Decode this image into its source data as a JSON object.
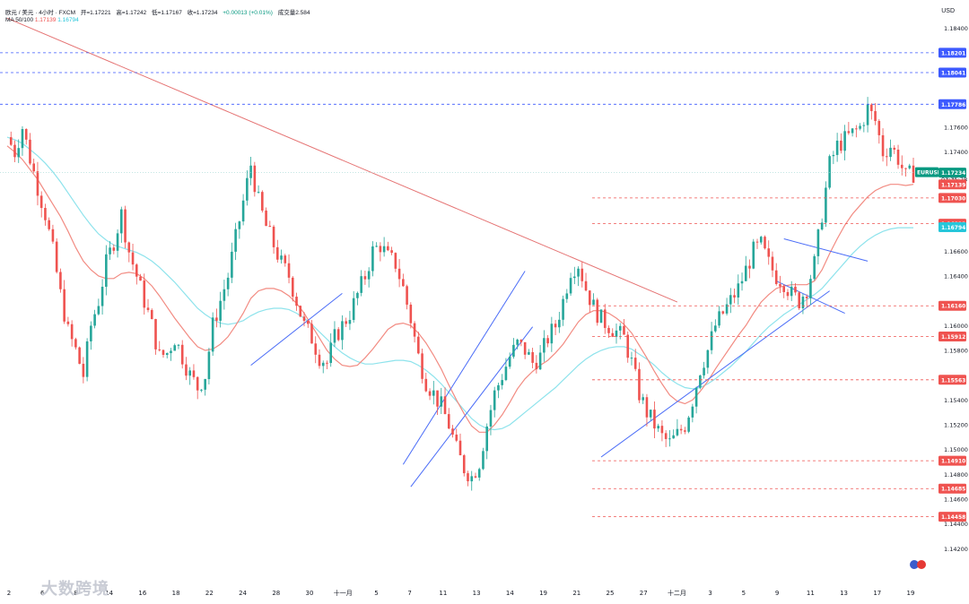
{
  "header": {
    "symbol": "欧元 / 美元 · 4小时 · FXCM",
    "open": "开=1.17221",
    "high": "高=1.17242",
    "low": "低=1.17167",
    "close": "收=1.17234",
    "change": "+0.00013 (+0.01%)",
    "volume": "成交量2.584"
  },
  "ma_legend": {
    "label": "MA 50/100",
    "v1": "1.17139",
    "v2": "1.16794"
  },
  "currency": "USD",
  "watermark": "大数跨境",
  "colors": {
    "up": "#26a69a",
    "down": "#ef5350",
    "ma50": "#f28b82",
    "ma100": "#8ee3ec",
    "trend": "#4a6cf7",
    "downtrend": "#e57373",
    "blue_level": "#3d5afe",
    "red_level": "#ef5350",
    "price_tag": "#089981"
  },
  "chart_data": {
    "type": "candlestick",
    "ylim": [
      1.14,
      1.1854
    ],
    "y_ticks": [
      "1.18400",
      "1.17600",
      "1.17400",
      "1.16600",
      "1.16400",
      "1.16000",
      "1.15800",
      "1.15400",
      "1.15200",
      "1.15000",
      "1.14800",
      "1.14600",
      "1.14400",
      "1.14200"
    ],
    "x_labels": [
      "2",
      "6",
      "8",
      "14",
      "16",
      "18",
      "22",
      "24",
      "28",
      "30",
      "十一月",
      "5",
      "7",
      "11",
      "13",
      "14",
      "19",
      "21",
      "25",
      "27",
      "十二月",
      "3",
      "5",
      "9",
      "11",
      "13",
      "17",
      "19"
    ],
    "price_levels": [
      {
        "value": "1.18201",
        "color": "blue",
        "style": "dashed"
      },
      {
        "value": "1.18041",
        "color": "blue",
        "style": "dashed"
      },
      {
        "value": "1.17786",
        "color": "blue",
        "style": "dashed"
      },
      {
        "value": "1.17234",
        "color": "teal",
        "label": "EURUSD",
        "sub": "03:35:28"
      },
      {
        "value": "1.17139",
        "color": "red"
      },
      {
        "value": "1.17030",
        "color": "red",
        "style": "dashed"
      },
      {
        "value": "1.16822",
        "color": "red",
        "style": "dashed"
      },
      {
        "value": "1.16794",
        "color": "cyan"
      },
      {
        "value": "1.16160",
        "color": "red",
        "style": "dashed"
      },
      {
        "value": "1.15912",
        "color": "red",
        "style": "dashed"
      },
      {
        "value": "1.15563",
        "color": "red",
        "style": "dashed"
      },
      {
        "value": "1.14910",
        "color": "red",
        "style": "dashed"
      },
      {
        "value": "1.14685",
        "color": "red",
        "style": "dashed"
      },
      {
        "value": "1.14458",
        "color": "red",
        "style": "dashed"
      }
    ],
    "close_path": [
      1.1752,
      1.174,
      1.176,
      1.1735,
      1.1712,
      1.169,
      1.166,
      1.1625,
      1.1595,
      1.158,
      1.156,
      1.16,
      1.162,
      1.165,
      1.1668,
      1.169,
      1.166,
      1.164,
      1.162,
      1.16,
      1.1575,
      1.1578,
      1.159,
      1.1575,
      1.156,
      1.155,
      1.156,
      1.16,
      1.162,
      1.164,
      1.167,
      1.17,
      1.173,
      1.17,
      1.168,
      1.1665,
      1.165,
      1.164,
      1.162,
      1.16,
      1.159,
      1.1575,
      1.157,
      1.159,
      1.16,
      1.161,
      1.1625,
      1.164,
      1.166,
      1.1665,
      1.1655,
      1.165,
      1.163,
      1.1605,
      1.1575,
      1.1555,
      1.1545,
      1.1535,
      1.152,
      1.15,
      1.1485,
      1.1478,
      1.149,
      1.152,
      1.1545,
      1.156,
      1.1575,
      1.1585,
      1.158,
      1.157,
      1.1575,
      1.159,
      1.16,
      1.162,
      1.1645,
      1.165,
      1.163,
      1.1615,
      1.1605,
      1.16,
      1.1595,
      1.159,
      1.157,
      1.1545,
      1.153,
      1.152,
      1.151,
      1.1505,
      1.1512,
      1.152,
      1.154,
      1.1565,
      1.158,
      1.16,
      1.161,
      1.162,
      1.163,
      1.1645,
      1.166,
      1.1665,
      1.165,
      1.164,
      1.1635,
      1.1625,
      1.162,
      1.163,
      1.165,
      1.169,
      1.173,
      1.1745,
      1.175,
      1.1755,
      1.176,
      1.1775,
      1.1765,
      1.174,
      1.1745,
      1.1735,
      1.172,
      1.1723
    ],
    "ma50": [
      1.1745,
      1.174,
      1.1734,
      1.1726,
      1.1718,
      1.1708,
      1.1698,
      1.1688,
      1.1676,
      1.1663,
      1.1652,
      1.1645,
      1.164,
      1.1638,
      1.1638,
      1.1642,
      1.1643,
      1.1642,
      1.1638,
      1.1632,
      1.1624,
      1.1615,
      1.1606,
      1.1598,
      1.159,
      1.1583,
      1.158,
      1.1581,
      1.1585,
      1.1591,
      1.16,
      1.161,
      1.1622,
      1.1628,
      1.163,
      1.163,
      1.1628,
      1.1624,
      1.1618,
      1.161,
      1.16,
      1.159,
      1.158,
      1.1573,
      1.1568,
      1.1567,
      1.1568,
      1.1574,
      1.1581,
      1.1589,
      1.1597,
      1.1601,
      1.1602,
      1.16,
      1.1594,
      1.1586,
      1.1576,
      1.1565,
      1.1552,
      1.154,
      1.1529,
      1.1519,
      1.1514,
      1.1514,
      1.152,
      1.1528,
      1.1538,
      1.1549,
      1.1557,
      1.1563,
      1.1568,
      1.1572,
      1.1578,
      1.1585,
      1.1594,
      1.1603,
      1.1609,
      1.1612,
      1.1612,
      1.161,
      1.1606,
      1.1601,
      1.1594,
      1.1584,
      1.1574,
      1.1563,
      1.1553,
      1.1544,
      1.1539,
      1.1537,
      1.154,
      1.1547,
      1.1555,
      1.1565,
      1.1574,
      1.1583,
      1.1592,
      1.16,
      1.161,
      1.1619,
      1.1625,
      1.163,
      1.1632,
      1.1633,
      1.1633,
      1.1633,
      1.1636,
      1.1645,
      1.1658,
      1.167,
      1.1681,
      1.169,
      1.1697,
      1.1704,
      1.1709,
      1.1712,
      1.1714,
      1.1714,
      1.1713,
      1.1714
    ],
    "ma100": [
      1.1752,
      1.175,
      1.1747,
      1.1742,
      1.1737,
      1.1731,
      1.1724,
      1.1716,
      1.1707,
      1.1698,
      1.1689,
      1.1681,
      1.1674,
      1.1669,
      1.1665,
      1.1663,
      1.1661,
      1.1659,
      1.1656,
      1.1652,
      1.1647,
      1.1641,
      1.1635,
      1.1628,
      1.1621,
      1.1614,
      1.1609,
      1.1605,
      1.1602,
      1.1601,
      1.1602,
      1.1604,
      1.1608,
      1.1611,
      1.1613,
      1.1614,
      1.1614,
      1.1613,
      1.161,
      1.1606,
      1.1601,
      1.1595,
      1.1589,
      1.1583,
      1.1578,
      1.1574,
      1.1571,
      1.1569,
      1.1569,
      1.157,
      1.1571,
      1.1572,
      1.1572,
      1.1571,
      1.1568,
      1.1564,
      1.1559,
      1.1553,
      1.1546,
      1.1539,
      1.1532,
      1.1525,
      1.152,
      1.1517,
      1.1516,
      1.1517,
      1.152,
      1.1525,
      1.153,
      1.1535,
      1.154,
      1.1545,
      1.155,
      1.1556,
      1.1562,
      1.1568,
      1.1573,
      1.1577,
      1.158,
      1.1582,
      1.1583,
      1.1583,
      1.1581,
      1.1577,
      1.1573,
      1.1568,
      1.1562,
      1.1557,
      1.1553,
      1.155,
      1.1549,
      1.155,
      1.1553,
      1.1557,
      1.1562,
      1.1567,
      1.1573,
      1.1579,
      1.1586,
      1.1593,
      1.1599,
      1.1604,
      1.1609,
      1.1613,
      1.1617,
      1.1621,
      1.1625,
      1.163,
      1.1637,
      1.1644,
      1.1651,
      1.1658,
      1.1664,
      1.1669,
      1.1673,
      1.1676,
      1.1678,
      1.1679,
      1.1679,
      1.1679
    ]
  }
}
